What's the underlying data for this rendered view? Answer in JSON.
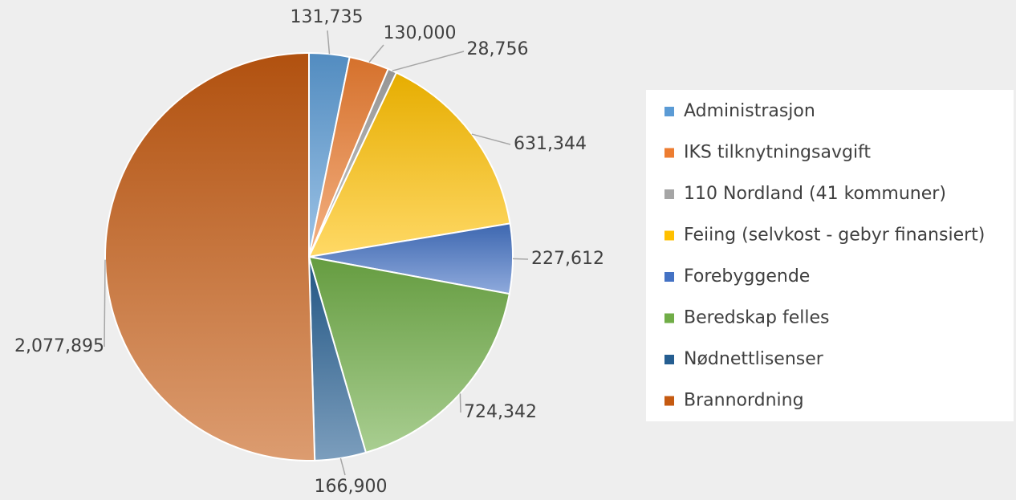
{
  "chart_data": {
    "type": "pie",
    "categories": [
      "Administrasjon",
      "IKS tilknytningsavgift",
      "110 Nordland (41 kommuner)",
      "Feiing (selvkost - gebyr finansiert)",
      "Forebyggende",
      "Beredskap felles",
      "Nødnettlisenser",
      "Brannordning"
    ],
    "values": [
      131735,
      130000,
      28756,
      631344,
      227612,
      724342,
      166900,
      2077895
    ],
    "value_labels": [
      "131,735",
      "130,000",
      "28,756",
      "631,344",
      "227,612",
      "724,342",
      "166,900",
      "2,077,895"
    ],
    "colors": [
      "#5b9bd5",
      "#ed7d31",
      "#a5a5a5",
      "#ffc000",
      "#4472c4",
      "#70ad47",
      "#255e91",
      "#c55a11"
    ],
    "legend": "right"
  }
}
